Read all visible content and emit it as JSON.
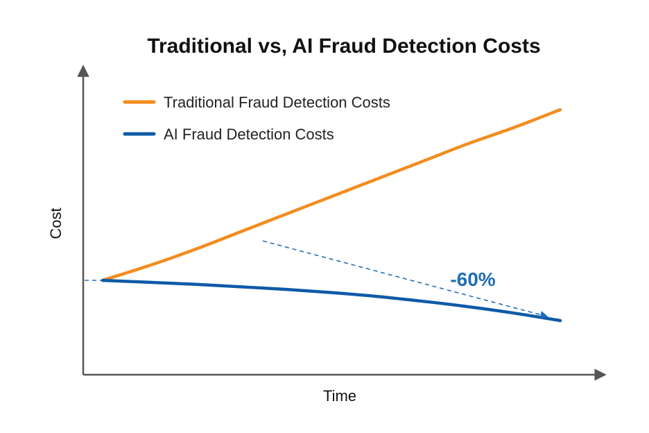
{
  "chart_data": {
    "type": "line",
    "title": "Traditional vs, AI Fraud Detection Costs",
    "xlabel": "Time",
    "ylabel": "Cost",
    "x": [
      0,
      1,
      2,
      3,
      4,
      5,
      6,
      7,
      8,
      9,
      10
    ],
    "xlim": [
      0,
      10
    ],
    "ylim": [
      0,
      10
    ],
    "grid": false,
    "legend_position": "top-left",
    "series": [
      {
        "name": "Traditional Fraud Detection Costs",
        "color": "#F28C1E",
        "values": [
          5.0,
          5.45,
          5.95,
          6.5,
          7.05,
          7.6,
          8.15,
          8.7,
          9.25,
          9.75,
          10.3
        ]
      },
      {
        "name": "AI Fraud Detection Costs",
        "color": "#0E5AA7",
        "values": [
          5.0,
          4.94,
          4.88,
          4.8,
          4.72,
          4.62,
          4.5,
          4.35,
          4.18,
          3.98,
          3.75
        ]
      }
    ],
    "annotations": [
      {
        "text": "-60%",
        "color": "#1F6DB8",
        "arrow": {
          "from": [
            3.5,
            7.0
          ],
          "to": [
            9.7,
            4.4
          ],
          "style": "dashed"
        }
      }
    ],
    "baseline_marker": {
      "y": 5.0,
      "style": "dashed"
    }
  }
}
